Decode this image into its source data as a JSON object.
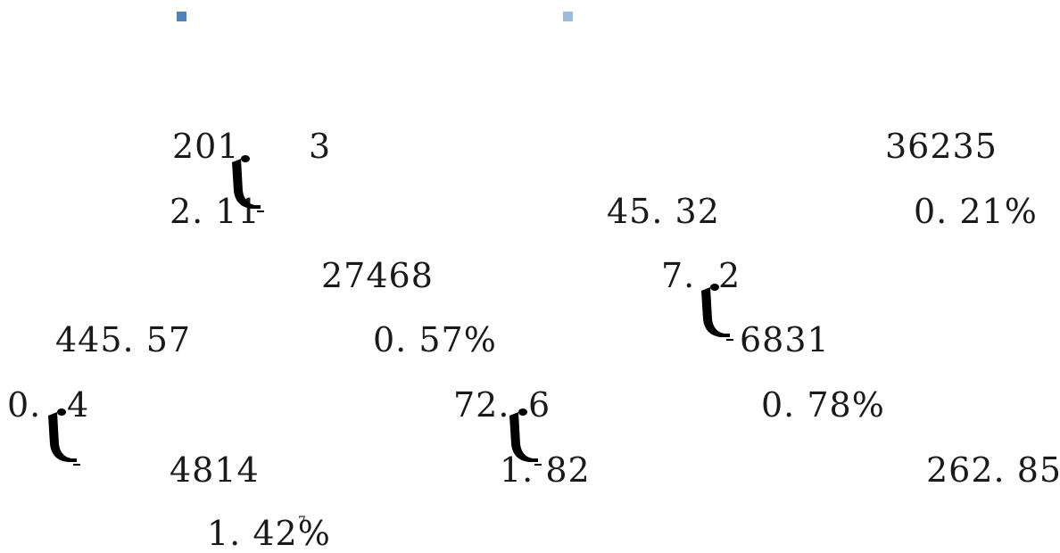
{
  "legend_markers": [
    {
      "color": "#4f81bd"
    },
    {
      "color": "#9dbbe0"
    }
  ],
  "glyph_icon": "broken-glyph-icon",
  "cells": [
    "201",
    "3",
    "36235",
    "2. 11",
    "45. 32",
    "0. 21%",
    "27468",
    "7.",
    "2",
    "445. 57",
    "0. 57%",
    "6831",
    "0.",
    "4",
    "72.",
    "6",
    "0. 78%",
    "4814",
    "1. 82",
    "262. 85",
    "1. 42%"
  ],
  "footnote_mark": "7"
}
